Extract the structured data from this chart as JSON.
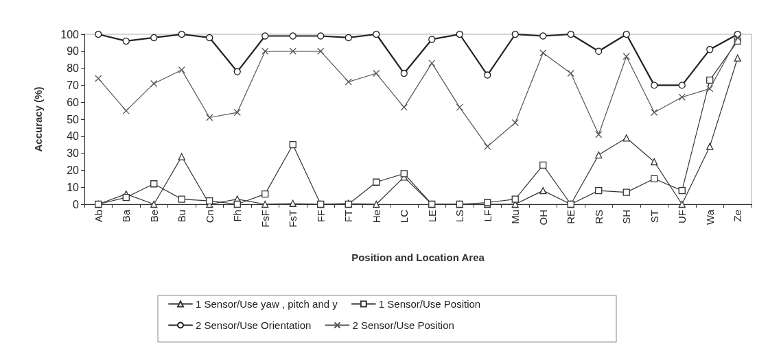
{
  "chart_data": {
    "type": "line",
    "xlabel": "Position and Location Area",
    "ylabel": "Accuracy (%)",
    "categories": [
      "Ab",
      "Ba",
      "Be",
      "Bu",
      "Cn",
      "Fh",
      "FsF",
      "FsT",
      "FF",
      "FT",
      "He",
      "LC",
      "LE",
      "LS",
      "LF",
      "Mu",
      "OH",
      "RE",
      "RS",
      "SH",
      "ST",
      "UF",
      "Wa",
      "Ze"
    ],
    "series": [
      {
        "name": "1 Sensor/Use yaw , pitch and y",
        "color": "#333333",
        "marker": "triangle",
        "values": [
          0,
          6,
          0,
          28,
          0,
          3,
          0,
          0.5,
          0,
          0.5,
          0,
          16,
          0,
          0,
          0,
          0,
          8,
          0,
          29,
          39,
          25,
          0,
          34,
          86
        ]
      },
      {
        "name": "1 Sensor/Use Position",
        "color": "#333333",
        "marker": "square",
        "values": [
          0,
          4,
          12,
          3,
          2,
          0,
          6,
          35,
          0,
          0,
          13,
          18,
          0,
          0,
          1,
          3,
          23,
          0,
          8,
          7,
          15,
          8,
          73,
          96
        ]
      },
      {
        "name": "2 Sensor/Use Orientation",
        "color": "#222222",
        "marker": "circle",
        "values": [
          100,
          96,
          98,
          100,
          98,
          78,
          99,
          99,
          99,
          98,
          100,
          77,
          97,
          100,
          76,
          100,
          99,
          100,
          90,
          100,
          70,
          70,
          91,
          100
        ]
      },
      {
        "name": "2 Sensor/Use Position",
        "color": "#555555",
        "marker": "cross",
        "values": [
          74,
          55,
          71,
          79,
          51,
          54,
          90,
          90,
          90,
          72,
          77,
          57,
          83,
          57,
          34,
          48,
          89,
          77,
          41,
          87,
          54,
          63,
          68,
          98
        ]
      }
    ],
    "ylim": [
      0,
      100
    ],
    "yticks": [
      0,
      10,
      20,
      30,
      40,
      50,
      60,
      70,
      80,
      90,
      100
    ],
    "grid": false,
    "legend": "bottom"
  }
}
